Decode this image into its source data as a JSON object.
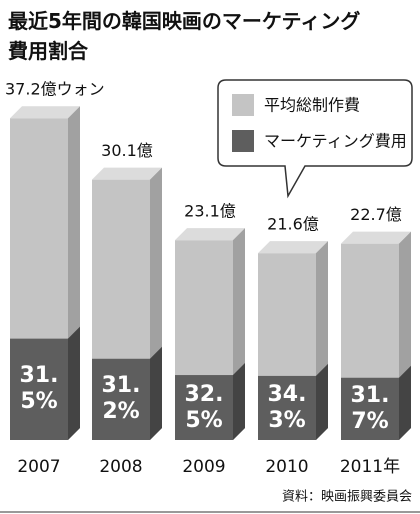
{
  "chart_data": {
    "type": "bar",
    "title": "最近5年間の韓国映画のマーケティング費用割合",
    "categories": [
      "2007",
      "2008",
      "2009",
      "2010",
      "2011年"
    ],
    "series": [
      {
        "name": "平均総制作費",
        "color": "#c4c4c4",
        "values": [
          37.2,
          30.1,
          23.1,
          21.6,
          22.7
        ],
        "value_labels": [
          "37.2億ウォン",
          "30.1億",
          "23.1億",
          "21.6億",
          "22.7億"
        ]
      },
      {
        "name": "マーケティング費用",
        "color": "#5e5e5e",
        "values": [
          31.5,
          31.2,
          32.5,
          34.3,
          31.7
        ],
        "value_labels": [
          "31.5%",
          "31.2%",
          "32.5%",
          "34.3%",
          "31.7%"
        ]
      }
    ],
    "source": "資料：映画振興委員会"
  }
}
